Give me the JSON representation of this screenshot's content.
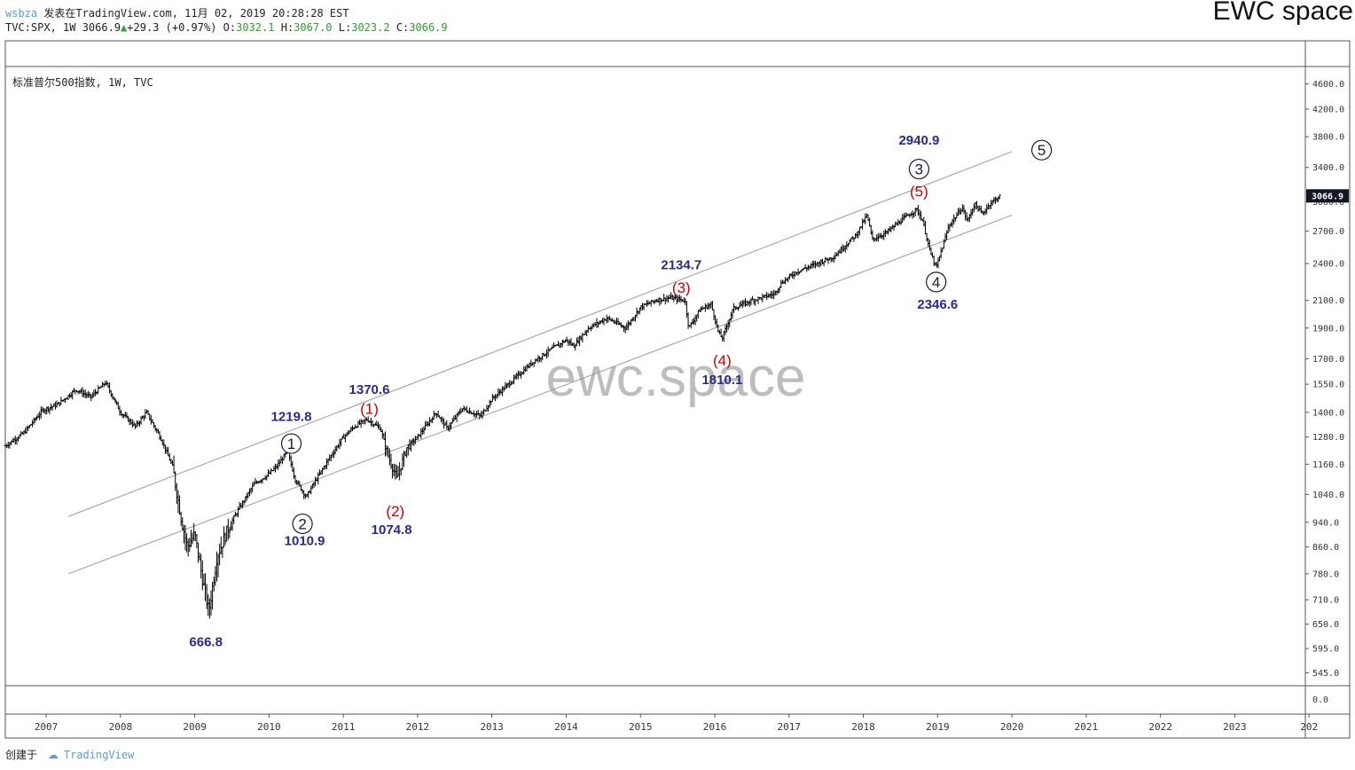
{
  "header": {
    "user": "wsbza",
    "published": "发表在TradingView.com, 11月 02, 2019 20:28:28 EST",
    "symbol": "TVC:SPX, 1W 3066.9",
    "change_arrow": "▲",
    "change": "+29.3 (+0.97%)",
    "o_label": "O:",
    "o_value": "3032.1",
    "h_label": "H:",
    "h_value": "3067.0",
    "l_label": "L:",
    "l_value": "3023.2",
    "c_label": "C:",
    "c_value": "3066.9"
  },
  "brand": "EWC space",
  "footer": {
    "created": "创建于",
    "logo_text": "TradingView"
  },
  "colors": {
    "navy": "#2a2a8a",
    "red": "#cc0000",
    "bar": "#000000",
    "channel": "#9a9a9a",
    "price_tag": "#131722"
  },
  "chart_data": {
    "type": "bar",
    "title": "标准普尔500指数, 1W, TVC",
    "watermark": "ewc.space",
    "y_scale": "log",
    "ylim": [
      520,
      4900
    ],
    "y_ticks": [
      "4600.0",
      "4200.0",
      "3800.0",
      "3400.0",
      "3000.0",
      "2700.0",
      "2400.0",
      "2100.0",
      "1900.0",
      "1700.0",
      "1550.0",
      "1400.0",
      "1280.0",
      "1160.0",
      "1040.0",
      "940.0",
      "860.0",
      "780.0",
      "710.0",
      "650.0",
      "595.0",
      "545.0"
    ],
    "y_tick_values": [
      4600,
      4200,
      3800,
      3400,
      3000,
      2700,
      2400,
      2100,
      1900,
      1700,
      1550,
      1400,
      1280,
      1160,
      1040,
      940,
      860,
      780,
      710,
      650,
      595,
      545
    ],
    "volume_tick": "0.0",
    "x_ticks": [
      "2007",
      "2008",
      "2009",
      "2010",
      "2011",
      "2012",
      "2013",
      "2014",
      "2015",
      "2016",
      "2017",
      "2018",
      "2019",
      "2020",
      "2021",
      "2022",
      "2023",
      "202"
    ],
    "xlim": [
      2006.45,
      2023.95
    ],
    "last_price": "3066.9",
    "price_path": [
      [
        2006.45,
        1240
      ],
      [
        2006.7,
        1300
      ],
      [
        2006.95,
        1410
      ],
      [
        2007.15,
        1440
      ],
      [
        2007.4,
        1520
      ],
      [
        2007.6,
        1480
      ],
      [
        2007.8,
        1560
      ],
      [
        2008.0,
        1400
      ],
      [
        2008.2,
        1330
      ],
      [
        2008.35,
        1400
      ],
      [
        2008.55,
        1270
      ],
      [
        2008.7,
        1150
      ],
      [
        2008.82,
        950
      ],
      [
        2008.9,
        860
      ],
      [
        2009.0,
        900
      ],
      [
        2009.1,
        770
      ],
      [
        2009.19,
        680
      ],
      [
        2009.3,
        830
      ],
      [
        2009.45,
        920
      ],
      [
        2009.6,
        990
      ],
      [
        2009.8,
        1080
      ],
      [
        2010.0,
        1120
      ],
      [
        2010.1,
        1150
      ],
      [
        2010.25,
        1215
      ],
      [
        2010.35,
        1100
      ],
      [
        2010.5,
        1030
      ],
      [
        2010.6,
        1080
      ],
      [
        2010.8,
        1180
      ],
      [
        2011.0,
        1280
      ],
      [
        2011.15,
        1330
      ],
      [
        2011.32,
        1365
      ],
      [
        2011.5,
        1320
      ],
      [
        2011.6,
        1200
      ],
      [
        2011.72,
        1100
      ],
      [
        2011.85,
        1230
      ],
      [
        2012.0,
        1280
      ],
      [
        2012.25,
        1400
      ],
      [
        2012.4,
        1320
      ],
      [
        2012.6,
        1420
      ],
      [
        2012.85,
        1380
      ],
      [
        2013.0,
        1470
      ],
      [
        2013.3,
        1580
      ],
      [
        2013.55,
        1680
      ],
      [
        2013.8,
        1760
      ],
      [
        2014.0,
        1820
      ],
      [
        2014.1,
        1780
      ],
      [
        2014.3,
        1900
      ],
      [
        2014.55,
        1970
      ],
      [
        2014.8,
        1900
      ],
      [
        2015.0,
        2050
      ],
      [
        2015.2,
        2100
      ],
      [
        2015.4,
        2120
      ],
      [
        2015.6,
        2100
      ],
      [
        2015.65,
        1900
      ],
      [
        2015.8,
        2030
      ],
      [
        2015.95,
        2070
      ],
      [
        2016.05,
        1870
      ],
      [
        2016.1,
        1830
      ],
      [
        2016.25,
        2040
      ],
      [
        2016.5,
        2100
      ],
      [
        2016.8,
        2150
      ],
      [
        2016.9,
        2240
      ],
      [
        2017.1,
        2330
      ],
      [
        2017.3,
        2380
      ],
      [
        2017.6,
        2460
      ],
      [
        2017.9,
        2660
      ],
      [
        2018.05,
        2860
      ],
      [
        2018.12,
        2620
      ],
      [
        2018.3,
        2680
      ],
      [
        2018.55,
        2830
      ],
      [
        2018.72,
        2920
      ],
      [
        2018.8,
        2800
      ],
      [
        2018.9,
        2500
      ],
      [
        2018.98,
        2360
      ],
      [
        2019.15,
        2750
      ],
      [
        2019.33,
        2940
      ],
      [
        2019.4,
        2800
      ],
      [
        2019.5,
        2980
      ],
      [
        2019.6,
        2870
      ],
      [
        2019.7,
        2980
      ],
      [
        2019.84,
        3066.9
      ]
    ],
    "channel": [
      {
        "x": [
          2007.3,
          2020.0
        ],
        "y": [
          960,
          3600
        ]
      },
      {
        "x": [
          2007.3,
          2020.0
        ],
        "y": [
          780,
          2860
        ]
      }
    ],
    "annotations": [
      {
        "id": "low-2009",
        "text": "666.8",
        "x": 2009.15,
        "y": 610,
        "color": "navy",
        "kind": "value"
      },
      {
        "id": "w1-price",
        "text": "1219.8",
        "x": 2010.3,
        "y": 1380,
        "color": "navy",
        "kind": "value"
      },
      {
        "id": "w1",
        "text": "1",
        "x": 2010.3,
        "y": 1250,
        "color": "navy",
        "kind": "circle"
      },
      {
        "id": "w2",
        "text": "2",
        "x": 2010.45,
        "y": 935,
        "color": "navy",
        "kind": "circle"
      },
      {
        "id": "w2-price",
        "text": "1010.9",
        "x": 2010.48,
        "y": 880,
        "color": "navy",
        "kind": "value"
      },
      {
        "id": "p1-price",
        "text": "1370.6",
        "x": 2011.35,
        "y": 1520,
        "color": "navy",
        "kind": "value"
      },
      {
        "id": "p1",
        "text": "(1)",
        "x": 2011.35,
        "y": 1420,
        "color": "red",
        "kind": "paren"
      },
      {
        "id": "p2",
        "text": "(2)",
        "x": 2011.7,
        "y": 980,
        "color": "red",
        "kind": "paren"
      },
      {
        "id": "p2-price",
        "text": "1074.8",
        "x": 2011.65,
        "y": 915,
        "color": "navy",
        "kind": "value"
      },
      {
        "id": "p3-price",
        "text": "2134.7",
        "x": 2015.55,
        "y": 2390,
        "color": "navy",
        "kind": "value"
      },
      {
        "id": "p3",
        "text": "(3)",
        "x": 2015.55,
        "y": 2200,
        "color": "red",
        "kind": "paren"
      },
      {
        "id": "p4",
        "text": "(4)",
        "x": 2016.1,
        "y": 1690,
        "color": "red",
        "kind": "paren"
      },
      {
        "id": "p4-price",
        "text": "1810.1",
        "x": 2016.1,
        "y": 1575,
        "color": "navy",
        "kind": "value"
      },
      {
        "id": "w3-price",
        "text": "2940.9",
        "x": 2018.75,
        "y": 3750,
        "color": "navy",
        "kind": "value"
      },
      {
        "id": "w3",
        "text": "3",
        "x": 2018.75,
        "y": 3380,
        "color": "navy",
        "kind": "circle"
      },
      {
        "id": "p5",
        "text": "(5)",
        "x": 2018.75,
        "y": 3120,
        "color": "red",
        "kind": "paren"
      },
      {
        "id": "w4",
        "text": "4",
        "x": 2018.98,
        "y": 2245,
        "color": "navy",
        "kind": "circle"
      },
      {
        "id": "w4-price",
        "text": "2346.6",
        "x": 2019.0,
        "y": 2070,
        "color": "navy",
        "kind": "value"
      },
      {
        "id": "w5",
        "text": "5",
        "x": 2020.4,
        "y": 3620,
        "color": "navy",
        "kind": "circle"
      }
    ]
  }
}
